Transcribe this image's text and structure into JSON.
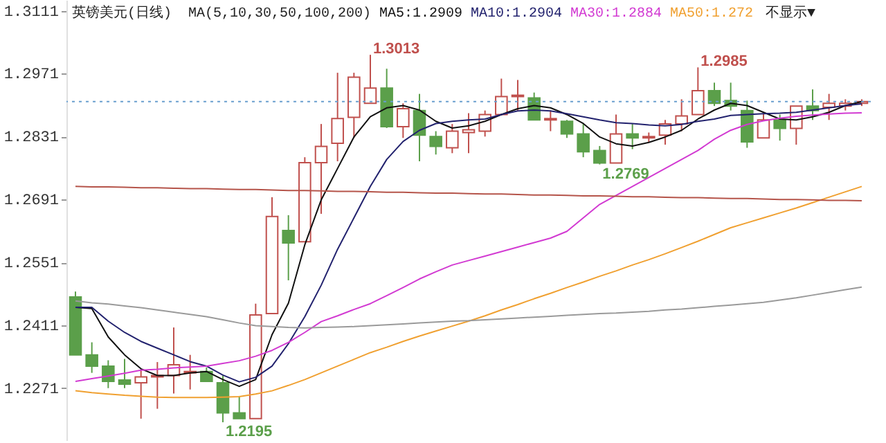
{
  "chart_data": {
    "type": "candlestick",
    "title": "英镑美元(日线)",
    "annotations": [
      "MA(5,10,30,50,100,200)",
      "1.3013",
      "1.2985",
      {
        "text": "1.2769",
        "y": 1.2769
      },
      {
        "text": "1.2195",
        "y": 1.2195
      },
      "不显示▼"
    ],
    "categories": [
      null,
      null,
      null,
      null,
      null,
      null,
      null,
      null,
      null,
      null,
      null,
      null,
      null,
      null,
      null,
      null,
      null,
      null,
      null,
      null,
      null,
      null,
      null,
      null,
      null,
      null,
      null,
      null,
      null,
      null,
      null,
      null,
      null,
      null,
      null,
      null,
      null,
      null,
      null,
      null,
      null,
      null,
      null,
      null,
      null,
      null,
      null,
      null,
      null
    ],
    "ohlc": [
      [
        1.2474,
        1.2486,
        1.2345,
        1.2345
      ],
      [
        1.2345,
        1.2373,
        1.2305,
        1.232
      ],
      [
        1.232,
        1.2333,
        1.2271,
        1.2286
      ],
      [
        1.2289,
        1.2336,
        1.2271,
        1.228
      ],
      [
        1.2283,
        1.2311,
        1.2203,
        1.2296
      ],
      [
        1.2296,
        1.2329,
        1.2225,
        1.2299
      ],
      [
        1.2299,
        1.2406,
        1.2259,
        1.2323
      ],
      [
        1.2305,
        1.2345,
        1.2268,
        1.2308
      ],
      [
        1.2308,
        1.2317,
        1.2286,
        1.2286
      ],
      [
        1.2283,
        1.2299,
        1.2195,
        1.2216
      ],
      [
        1.2216,
        1.2253,
        1.2203,
        1.2203
      ],
      [
        1.2203,
        1.2459,
        1.2203,
        1.2434
      ],
      [
        1.2437,
        1.2696,
        1.2437,
        1.2653
      ],
      [
        1.2622,
        1.2656,
        1.2511,
        1.2594
      ],
      [
        1.2597,
        1.2785,
        1.2597,
        1.2773
      ],
      [
        1.2773,
        1.2859,
        1.2659,
        1.2809
      ],
      [
        1.2816,
        1.2973,
        1.2776,
        1.2871
      ],
      [
        1.2874,
        1.2973,
        1.2828,
        1.2963
      ],
      [
        1.2905,
        1.3013,
        1.2905,
        1.2939
      ],
      [
        1.2939,
        1.2982,
        1.285,
        1.2853
      ],
      [
        1.2853,
        1.2905,
        1.2828,
        1.2893
      ],
      [
        1.2889,
        1.2926,
        1.2776,
        1.2834
      ],
      [
        1.2831,
        1.2843,
        1.2791,
        1.2809
      ],
      [
        1.2806,
        1.2859,
        1.2794,
        1.2843
      ],
      [
        1.284,
        1.2883,
        1.2794,
        1.2846
      ],
      [
        1.2843,
        1.2889,
        1.2831,
        1.288
      ],
      [
        1.288,
        1.296,
        1.288,
        1.292
      ],
      [
        1.292,
        1.2957,
        1.2889,
        1.2923
      ],
      [
        1.2917,
        1.2929,
        1.2868,
        1.2868
      ],
      [
        1.2868,
        1.2889,
        1.2843,
        1.2871
      ],
      [
        1.2865,
        1.2868,
        1.2828,
        1.2837
      ],
      [
        1.2837,
        1.2859,
        1.2785,
        1.2797
      ],
      [
        1.28,
        1.281,
        1.2769,
        1.2772
      ],
      [
        1.2772,
        1.288,
        1.2772,
        1.2837
      ],
      [
        1.2837,
        1.2859,
        1.2803,
        1.2828
      ],
      [
        1.2828,
        1.284,
        1.2818,
        1.2831
      ],
      [
        1.2834,
        1.2868,
        1.2813,
        1.2859
      ],
      [
        1.2859,
        1.2914,
        1.2843,
        1.2877
      ],
      [
        1.288,
        1.2985,
        1.288,
        1.2933
      ],
      [
        1.2933,
        1.2951,
        1.2899,
        1.2905
      ],
      [
        1.2911,
        1.2951,
        1.2889,
        1.2899
      ],
      [
        1.2889,
        1.2911,
        1.2806,
        1.2819
      ],
      [
        1.2828,
        1.2883,
        1.2828,
        1.2868
      ],
      [
        1.2868,
        1.288,
        1.2822,
        1.2849
      ],
      [
        1.2849,
        1.2899,
        1.2813,
        1.2899
      ],
      [
        1.2899,
        1.2936,
        1.2868,
        1.2889
      ],
      [
        1.2896,
        1.2926,
        1.2868,
        1.2905
      ],
      [
        1.2899,
        1.2914,
        1.2889,
        1.2905
      ],
      [
        1.2905,
        1.2914,
        1.2899,
        1.2909
      ]
    ],
    "colors": [
      "#5b9f4a",
      "#5b9f4a",
      "#5b9f4a",
      "#5b9f4a",
      "#c0504d",
      "#c0504d",
      "#c0504d",
      "#c0504d",
      "#5b9f4a",
      "#5b9f4a",
      "#5b9f4a",
      "#c0504d",
      "#c0504d",
      "#5b9f4a",
      "#c0504d",
      "#c0504d",
      "#c0504d",
      "#c0504d",
      "#c0504d",
      "#5b9f4a",
      "#c0504d",
      "#5b9f4a",
      "#5b9f4a",
      "#c0504d",
      "#c0504d",
      "#c0504d",
      "#c0504d",
      "#c0504d",
      "#5b9f4a",
      "#c0504d",
      "#5b9f4a",
      "#5b9f4a",
      "#5b9f4a",
      "#c0504d",
      "#5b9f4a",
      "#c0504d",
      "#c0504d",
      "#c0504d",
      "#c0504d",
      "#5b9f4a",
      "#5b9f4a",
      "#5b9f4a",
      "#c0504d",
      "#5b9f4a",
      "#c0504d",
      "#5b9f4a",
      "#c0504d",
      "#c0504d",
      "#c0504d"
    ],
    "series": [
      {
        "type": "line",
        "name": "MA5:1.2909",
        "color": "#111111",
        "values": [
          1.2451,
          1.2448,
          1.2385,
          1.2345,
          1.2314,
          1.2299,
          1.2299,
          1.2305,
          1.2308,
          1.229,
          1.2275,
          1.229,
          1.239,
          1.246,
          1.259,
          1.269,
          1.276,
          1.283,
          1.2875,
          1.2895,
          1.29,
          1.289,
          1.2865,
          1.285,
          1.2855,
          1.2865,
          1.288,
          1.2893,
          1.29,
          1.2895,
          1.288,
          1.286,
          1.283,
          1.2815,
          1.281,
          1.2818,
          1.283,
          1.2845,
          1.287,
          1.289,
          1.2905,
          1.29,
          1.2885,
          1.287,
          1.2868,
          1.2875,
          1.2885,
          1.29,
          1.2909
        ]
      },
      {
        "type": "line",
        "name": "MA10:1.2904",
        "color": "#22226e",
        "values": [
          1.2451,
          1.2451,
          1.242,
          1.2395,
          1.2375,
          1.236,
          1.2345,
          1.233,
          1.232,
          1.23,
          1.2285,
          1.2295,
          1.232,
          1.237,
          1.243,
          1.25,
          1.258,
          1.265,
          1.272,
          1.278,
          1.282,
          1.2845,
          1.286,
          1.2865,
          1.2868,
          1.287,
          1.288,
          1.2888,
          1.289,
          1.2888,
          1.2882,
          1.2875,
          1.2868,
          1.2862,
          1.286,
          1.2857,
          1.2855,
          1.2858,
          1.2865,
          1.287,
          1.2878,
          1.288,
          1.2882,
          1.2883,
          1.2885,
          1.289,
          1.2895,
          1.29,
          1.2904
        ]
      },
      {
        "type": "line",
        "name": "MA30:1.2884",
        "color": "#d23ad2",
        "values": [
          1.2286,
          1.2292,
          1.2298,
          1.2304,
          1.2311,
          1.2313,
          1.2316,
          1.2318,
          1.232,
          1.2326,
          1.2332,
          1.2342,
          1.2355,
          1.2373,
          1.2395,
          1.2419,
          1.2432,
          1.2446,
          1.2459,
          1.2477,
          1.2495,
          1.2514,
          1.253,
          1.2545,
          1.2555,
          1.2565,
          1.2575,
          1.2585,
          1.2595,
          1.2605,
          1.262,
          1.265,
          1.268,
          1.27,
          1.272,
          1.274,
          1.276,
          1.278,
          1.28,
          1.2825,
          1.2845,
          1.2858,
          1.2866,
          1.2872,
          1.2876,
          1.2879,
          1.2881,
          1.2883,
          1.2884
        ]
      },
      {
        "type": "line",
        "name": "MA50:1.272",
        "color": "#f0a030",
        "values": [
          1.2265,
          1.2261,
          1.2258,
          1.2255,
          1.2253,
          1.2251,
          1.225,
          1.225,
          1.225,
          1.2251,
          1.2252,
          1.2258,
          1.2265,
          1.2277,
          1.229,
          1.2305,
          1.232,
          1.2335,
          1.235,
          1.2362,
          1.2375,
          1.2387,
          1.2398,
          1.2409,
          1.242,
          1.2432,
          1.2445,
          1.2457,
          1.247,
          1.2482,
          1.2495,
          1.2507,
          1.252,
          1.2532,
          1.2545,
          1.2557,
          1.257,
          1.2584,
          1.2598,
          1.2613,
          1.2628,
          1.2639,
          1.265,
          1.2661,
          1.2672,
          1.2684,
          1.2696,
          1.2708,
          1.272
        ]
      },
      {
        "type": "line",
        "color": "#9a9a9a",
        "values": [
          1.2465,
          1.2461,
          1.2458,
          1.2454,
          1.245,
          1.2445,
          1.244,
          1.2435,
          1.243,
          1.2423,
          1.2416,
          1.241,
          1.2408,
          1.2406,
          1.2405,
          1.2406,
          1.2407,
          1.2408,
          1.241,
          1.2412,
          1.2414,
          1.2416,
          1.2418,
          1.242,
          1.2421,
          1.2423,
          1.2425,
          1.2427,
          1.2429,
          1.2431,
          1.2433,
          1.2435,
          1.2437,
          1.2438,
          1.244,
          1.2442,
          1.2445,
          1.2447,
          1.245,
          1.2453,
          1.2456,
          1.2459,
          1.2462,
          1.2467,
          1.2472,
          1.2478,
          1.2484,
          1.249,
          1.2496
        ]
      },
      {
        "type": "line",
        "color": "#b5544a",
        "values": [
          1.272,
          1.2719,
          1.2719,
          1.2718,
          1.2717,
          1.2717,
          1.2716,
          1.2715,
          1.2715,
          1.2714,
          1.2713,
          1.2713,
          1.2712,
          1.2711,
          1.2711,
          1.271,
          1.2709,
          1.2709,
          1.2708,
          1.2707,
          1.2707,
          1.2706,
          1.2705,
          1.2705,
          1.2704,
          1.2703,
          1.2703,
          1.2702,
          1.2701,
          1.2701,
          1.27,
          1.2699,
          1.2699,
          1.2698,
          1.2697,
          1.2697,
          1.2696,
          1.2695,
          1.2695,
          1.2694,
          1.2693,
          1.2693,
          1.2692,
          1.2691,
          1.2691,
          1.269,
          1.2689,
          1.2689,
          1.2688
        ]
      }
    ],
    "ylim": [
      1.2155,
      1.3135
    ],
    "yticks": [
      1.2271,
      1.2411,
      1.2551,
      1.2691,
      1.2831,
      1.2971,
      1.3111
    ],
    "ref_lines": [
      {
        "axis": "y",
        "value": 1.2909,
        "color": "#6a9fcf",
        "line_style": "dotted"
      }
    ],
    "legend": "top",
    "tick_labels": "y"
  }
}
